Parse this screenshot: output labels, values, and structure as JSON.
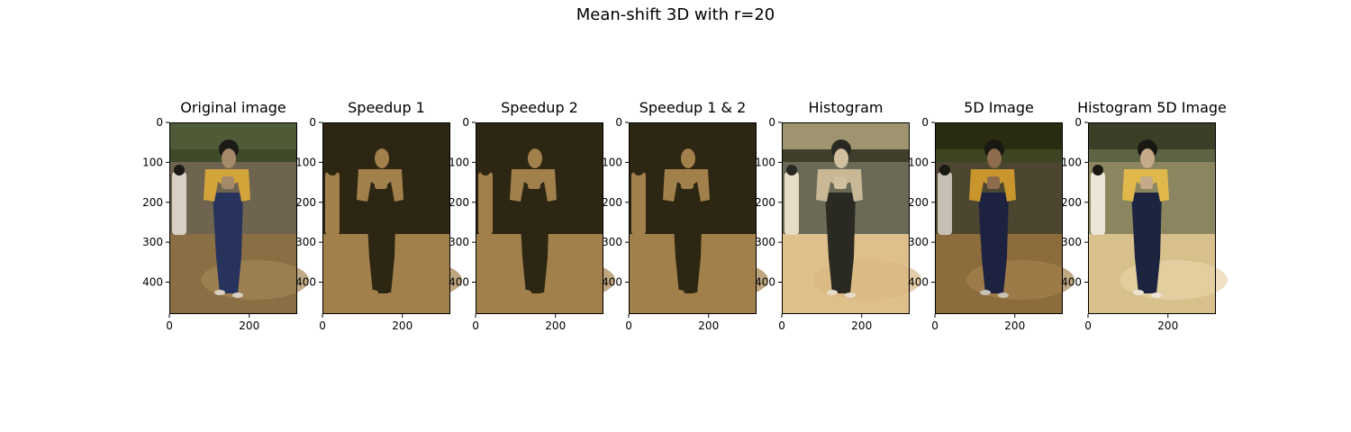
{
  "figure": {
    "title": "Mean-shift 3D with r=20",
    "y_ticks": [
      "0",
      "100",
      "200",
      "300",
      "400"
    ],
    "x_ticks": [
      "0",
      "200"
    ]
  },
  "panels": [
    {
      "title": "Original image",
      "style": "original"
    },
    {
      "title": "Speedup 1",
      "style": "posterized"
    },
    {
      "title": "Speedup 2",
      "style": "posterized"
    },
    {
      "title": "Speedup 1 & 2",
      "style": "posterized"
    },
    {
      "title": "Histogram",
      "style": "histogram"
    },
    {
      "title": "5D Image",
      "style": "five_d"
    },
    {
      "title": "Histogram 5D Image",
      "style": "hist_five_d"
    }
  ],
  "palettes": {
    "original": {
      "sky": "#4f5a36",
      "trees": "#3f4a2a",
      "wall": "#6e6450",
      "ground": "#8a6e44",
      "ground2": "#a48656",
      "jacket": "#d3a43a",
      "skirt": "#27335c",
      "skin": "#a58a6a",
      "hair": "#1c1a16",
      "side": "#d8d0c4"
    },
    "posterized": {
      "sky": "#2c2612",
      "trees": "#2c2612",
      "wall": "#2c2612",
      "ground": "#a2804c",
      "ground2": "#a2804c",
      "jacket": "#a2804c",
      "skirt": "#2c2612",
      "skin": "#a2804c",
      "hair": "#2c2612",
      "side": "#a2804c"
    },
    "histogram": {
      "sky": "#9e9470",
      "trees": "#3f3f2c",
      "wall": "#6a6a56",
      "ground": "#e0c08a",
      "ground2": "#d8b884",
      "jacket": "#c8b896",
      "skirt": "#2a2a22",
      "skin": "#d0c0a0",
      "hair": "#2a2822",
      "side": "#e6dcc8"
    },
    "five_d": {
      "sky": "#2a2c12",
      "trees": "#3c4422",
      "wall": "#4c4630",
      "ground": "#8c6c3c",
      "ground2": "#a2824e",
      "jacket": "#c8962c",
      "skirt": "#1c2240",
      "skin": "#8c6c4c",
      "hair": "#1a1812",
      "side": "#c8c0b4"
    },
    "hist_five_d": {
      "sky": "#3a4028",
      "trees": "#5c6444",
      "wall": "#8c8660",
      "ground": "#d8c08c",
      "ground2": "#e8d4a8",
      "jacket": "#e0b84c",
      "skirt": "#1c2440",
      "skin": "#c4aa88",
      "hair": "#1a1812",
      "side": "#ece4d4"
    }
  }
}
